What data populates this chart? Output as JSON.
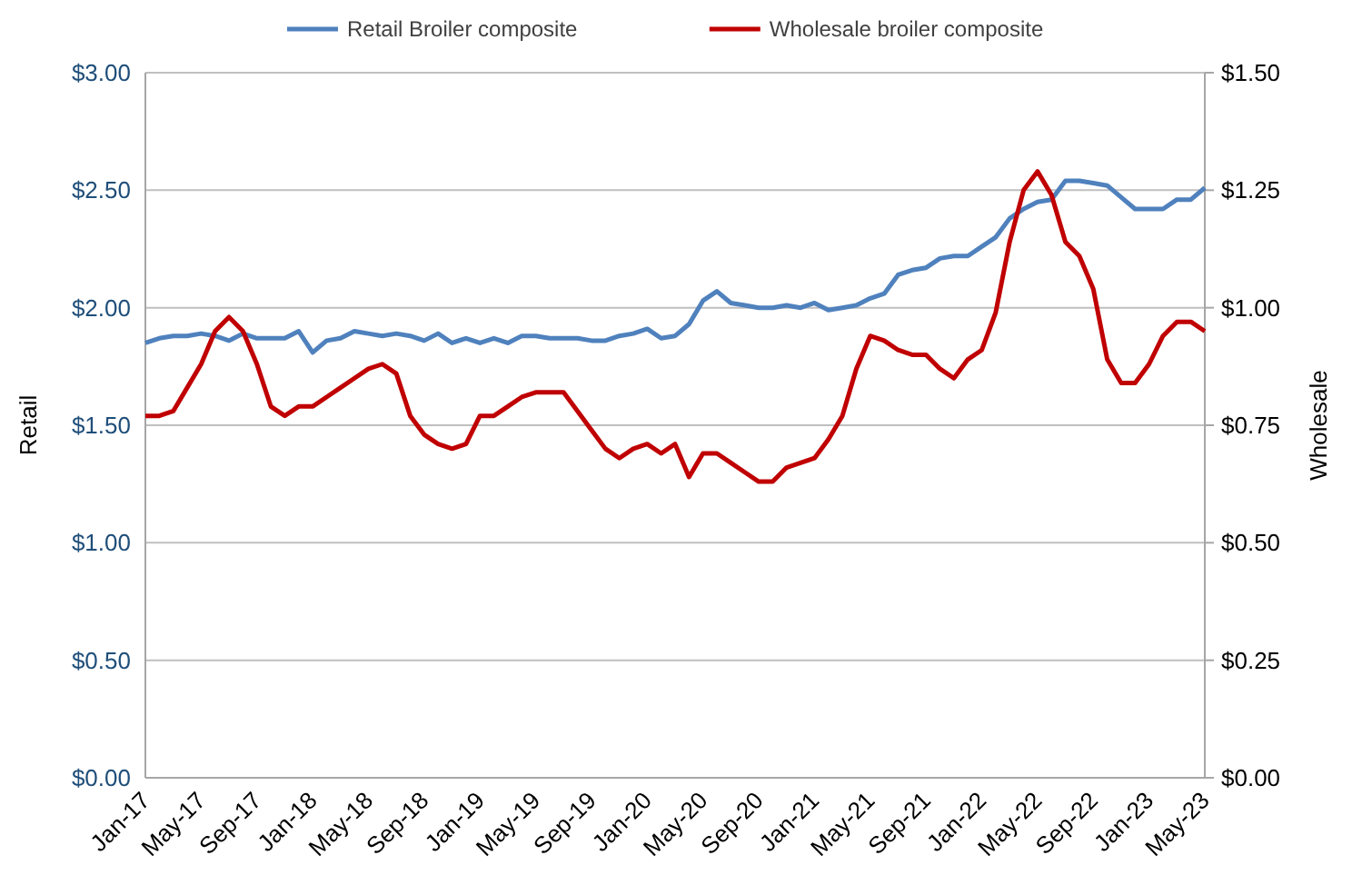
{
  "chart_data": {
    "type": "line",
    "ylabel": "Retail",
    "y2label": "Wholesale",
    "categories": [
      "Jan-17",
      null,
      null,
      null,
      "May-17",
      null,
      null,
      null,
      "Sep-17",
      null,
      null,
      null,
      "Jan-18",
      null,
      null,
      null,
      "May-18",
      null,
      null,
      null,
      "Sep-18",
      null,
      null,
      null,
      "Jan-19",
      null,
      null,
      null,
      "May-19",
      null,
      null,
      null,
      "Sep-19",
      null,
      null,
      null,
      "Jan-20",
      null,
      null,
      null,
      "May-20",
      null,
      null,
      null,
      "Sep-20",
      null,
      null,
      null,
      "Jan-21",
      null,
      null,
      null,
      "May-21",
      null,
      null,
      null,
      "Sep-21",
      null,
      null,
      null,
      "Jan-22",
      null,
      null,
      null,
      "May-22",
      null,
      null,
      null,
      "Sep-22",
      null,
      null,
      null,
      "Jan-23",
      null,
      null,
      null,
      "May-23"
    ],
    "series": [
      {
        "name": "Retail Broiler composite",
        "color": "#4f81bd",
        "values": [
          1.85,
          1.87,
          1.88,
          1.88,
          1.89,
          1.88,
          1.86,
          1.89,
          1.87,
          1.87,
          1.87,
          1.9,
          1.81,
          1.86,
          1.87,
          1.9,
          1.89,
          1.88,
          1.89,
          1.88,
          1.86,
          1.89,
          1.85,
          1.87,
          1.85,
          1.87,
          1.85,
          1.88,
          1.88,
          1.87,
          1.87,
          1.87,
          1.86,
          1.86,
          1.88,
          1.89,
          1.91,
          1.87,
          1.88,
          1.93,
          2.03,
          2.07,
          2.02,
          2.01,
          2.0,
          2.0,
          2.01,
          2.0,
          2.02,
          1.99,
          2.0,
          2.01,
          2.04,
          2.06,
          2.14,
          2.16,
          2.17,
          2.21,
          2.22,
          2.22,
          2.26,
          2.3,
          2.38,
          2.42,
          2.45,
          2.46,
          2.54,
          2.54,
          2.53,
          2.52,
          2.47,
          2.42,
          2.42,
          2.42,
          2.46,
          2.46,
          2.51
        ]
      },
      {
        "name": "Wholesale broiler composite",
        "color": "#c00000",
        "axis": "y2",
        "values": [
          0.77,
          0.77,
          0.78,
          0.83,
          0.88,
          0.95,
          0.98,
          0.95,
          0.88,
          0.79,
          0.77,
          0.79,
          0.79,
          0.81,
          0.83,
          0.85,
          0.87,
          0.88,
          0.86,
          0.77,
          0.73,
          0.71,
          0.7,
          0.71,
          0.77,
          0.77,
          0.79,
          0.81,
          0.82,
          0.82,
          0.82,
          0.78,
          0.74,
          0.7,
          0.68,
          0.7,
          0.71,
          0.69,
          0.71,
          0.64,
          0.69,
          0.69,
          0.67,
          0.65,
          0.63,
          0.63,
          0.66,
          0.67,
          0.68,
          0.72,
          0.77,
          0.87,
          0.94,
          0.93,
          0.91,
          0.9,
          0.9,
          0.87,
          0.85,
          0.89,
          0.91,
          0.99,
          1.14,
          1.25,
          1.29,
          1.24,
          1.14,
          1.11,
          1.04,
          0.89,
          0.84,
          0.84,
          0.88,
          0.94,
          0.97,
          0.97,
          0.95
        ]
      }
    ],
    "ylim": [
      0,
      3
    ],
    "yticks": [
      {
        "value": 0,
        "label": "$0.00"
      },
      {
        "value": 0.5,
        "label": "$0.50"
      },
      {
        "value": 1,
        "label": "$1.00"
      },
      {
        "value": 1.5,
        "label": "$1.50"
      },
      {
        "value": 2,
        "label": "$2.00"
      },
      {
        "value": 2.5,
        "label": "$2.50"
      },
      {
        "value": 3,
        "label": "$3.00"
      }
    ],
    "y2lim": [
      0,
      1.5
    ],
    "y2ticks": [
      {
        "value": 0,
        "label": "$0.00"
      },
      {
        "value": 0.25,
        "label": "$0.25"
      },
      {
        "value": 0.5,
        "label": "$0.50"
      },
      {
        "value": 0.75,
        "label": "$0.75"
      },
      {
        "value": 1,
        "label": "$1.00"
      },
      {
        "value": 1.25,
        "label": "$1.25"
      },
      {
        "value": 1.5,
        "label": "$1.50"
      }
    ],
    "grid": "y",
    "legend": "top",
    "marker": "none",
    "line_style": "solid"
  }
}
